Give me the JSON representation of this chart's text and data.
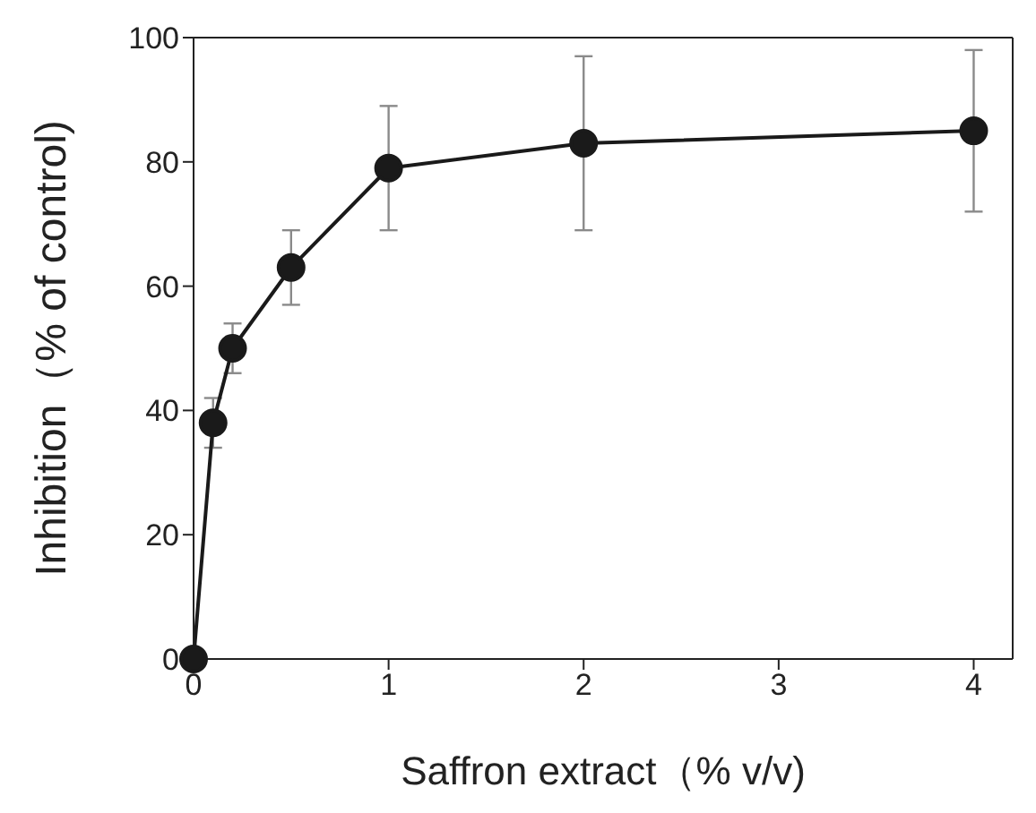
{
  "chart_data": {
    "type": "line",
    "xlabel": "Saffron extract（% v/v)",
    "ylabel": "Inhibition（% of control)",
    "x": [
      0,
      0.1,
      0.2,
      0.5,
      1,
      2,
      4
    ],
    "series": [
      {
        "color": "#1a1a1a",
        "values": [
          0,
          38,
          50,
          63,
          79,
          83,
          85
        ],
        "errors": [
          null,
          4,
          4,
          6,
          10,
          14,
          13
        ]
      }
    ],
    "xlim": [
      0,
      4.2
    ],
    "xticks": [
      0,
      1,
      2,
      3,
      4
    ],
    "ylim": [
      0,
      100
    ],
    "yticks": [
      0,
      20,
      40,
      60,
      80,
      100
    ],
    "grid": false,
    "legend": false,
    "marker": "circle",
    "line_style": "solid"
  }
}
